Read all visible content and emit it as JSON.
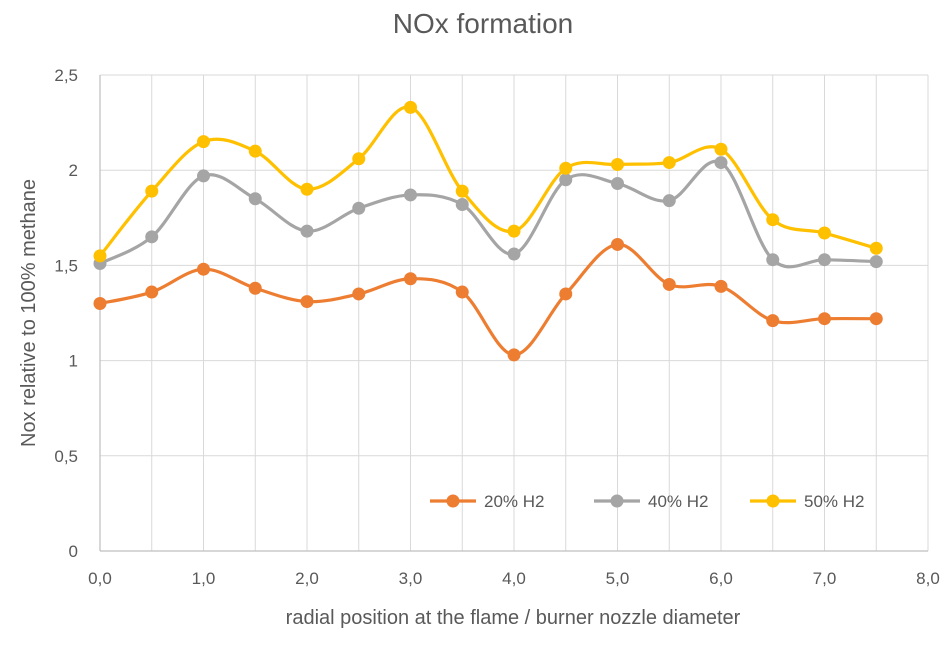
{
  "chart_data": {
    "type": "line",
    "title": "NOx formation",
    "xlabel": "radial position at the flame / burner nozzle diameter",
    "ylabel": "Nox relative to 100% methane",
    "xlim": [
      0,
      8
    ],
    "ylim": [
      0,
      2.5
    ],
    "x_ticks": [
      "0,0",
      "1,0",
      "2,0",
      "3,0",
      "4,0",
      "5,0",
      "6,0",
      "7,0",
      "8,0"
    ],
    "y_ticks": [
      "0",
      "0,5",
      "1",
      "1,5",
      "2",
      "2,5"
    ],
    "grid": "vertical and horizontal",
    "legend_position": "bottom-right",
    "x": [
      0,
      0.5,
      1.0,
      1.5,
      2.0,
      2.5,
      3.0,
      3.5,
      4.0,
      4.5,
      5.0,
      5.5,
      6.0,
      6.5,
      7.0,
      7.5
    ],
    "series": [
      {
        "name": "20% H2",
        "color": "#ED7D31",
        "values": [
          1.3,
          1.36,
          1.48,
          1.38,
          1.31,
          1.35,
          1.43,
          1.36,
          1.03,
          1.35,
          1.61,
          1.4,
          1.39,
          1.21,
          1.22,
          1.22
        ]
      },
      {
        "name": "40% H2",
        "color": "#A5A5A5",
        "values": [
          1.51,
          1.65,
          1.97,
          1.85,
          1.68,
          1.8,
          1.87,
          1.82,
          1.56,
          1.95,
          1.93,
          1.84,
          2.04,
          1.53,
          1.53,
          1.52
        ]
      },
      {
        "name": "50% H2",
        "color": "#FFC000",
        "values": [
          1.55,
          1.89,
          2.15,
          2.1,
          1.9,
          2.06,
          2.33,
          1.89,
          1.68,
          2.01,
          2.03,
          2.04,
          2.11,
          1.74,
          1.67,
          1.59
        ]
      }
    ]
  }
}
